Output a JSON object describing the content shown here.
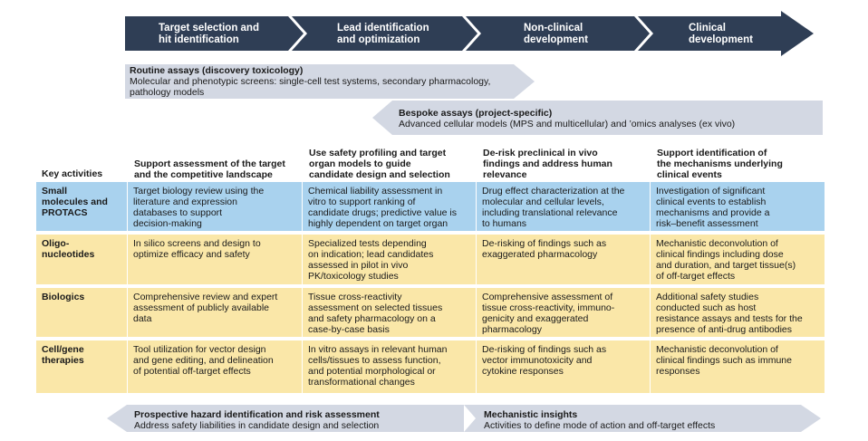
{
  "colors": {
    "phase_arrow": "#2f3e55",
    "band_arrow": "#d3d8e3",
    "row_small": "#a9d2ee",
    "row_other": "#fae7a8"
  },
  "phases": [
    {
      "line1": "Target selection and",
      "line2": "hit identification"
    },
    {
      "line1": "Lead identification",
      "line2": "and optimization"
    },
    {
      "line1": "Non-clinical",
      "line2": "development"
    },
    {
      "line1": "Clinical",
      "line2": "development"
    }
  ],
  "routine": {
    "title": "Routine assays (discovery toxicology)",
    "line1": "Molecular and phenotypic screens: single-cell test systems, secondary pharmacology,",
    "line2": "pathology models"
  },
  "bespoke": {
    "title": "Bespoke assays (project-specific)",
    "line1": "Advanced cellular models (MPS and multicellular) and ’omics analyses (ex vivo)"
  },
  "key_activities_label": "Key activities",
  "headers": [
    [
      "Support assessment of the target",
      "and the competitive landscape"
    ],
    [
      "Use safety profiling and target",
      "organ models to guide",
      "candidate design and selection"
    ],
    [
      "De-risk preclinical in vivo",
      "findings and address human",
      "relevance"
    ],
    [
      "Support identification of",
      "the mechanisms underlying",
      "clinical events"
    ]
  ],
  "rows": [
    {
      "label": [
        "Small",
        "molecules and",
        "PROTACS"
      ],
      "cells": [
        [
          "Target biology review using the",
          "literature and expression",
          "databases to support",
          "decision-making"
        ],
        [
          "Chemical liability assessment in",
          "vitro to support ranking of",
          "candidate drugs; predictive value is",
          "highly dependent on target organ"
        ],
        [
          "Drug effect characterization at the",
          "molecular and cellular levels,",
          "including translational relevance",
          "to humans"
        ],
        [
          "Investigation of significant",
          "clinical events to establish",
          "mechanisms and provide a",
          "risk–benefit assessment"
        ]
      ]
    },
    {
      "label": [
        "Oligo-",
        "nucleotides"
      ],
      "cells": [
        [
          "In silico screens and design to",
          "optimize efficacy and safety"
        ],
        [
          "Specialized tests depending",
          "on indication; lead candidates",
          "assessed in pilot in vivo",
          "PK/toxicology studies"
        ],
        [
          "De-risking of findings such as",
          "exaggerated pharmacology"
        ],
        [
          "Mechanistic deconvolution of",
          "clinical findings including dose",
          "and duration, and target tissue(s)",
          "of off-target effects"
        ]
      ]
    },
    {
      "label": [
        "Biologics"
      ],
      "cells": [
        [
          "Comprehensive review and expert",
          "assessment of publicly available",
          "data"
        ],
        [
          "Tissue cross-reactivity",
          "assessment on selected tissues",
          "and safety pharmacology on a",
          "case-by-case basis"
        ],
        [
          "Comprehensive assessment of",
          "tissue cross-reactivity, immuno-",
          "genicity and exaggerated",
          "pharmacology"
        ],
        [
          "Additional safety studies",
          "conducted such as host",
          "resistance assays and tests for the",
          "presence of anti-drug antibodies"
        ]
      ]
    },
    {
      "label": [
        "Cell/gene",
        "therapies"
      ],
      "cells": [
        [
          "Tool utilization for vector design",
          "and gene editing, and delineation",
          "of potential off-target effects"
        ],
        [
          "In vitro assays in relevant human",
          "cells/tissues to assess function,",
          "and potential morphological or",
          "transformational changes"
        ],
        [
          "De-risking of findings such as",
          "vector immunotoxicity and",
          "cytokine responses"
        ],
        [
          "Mechanistic deconvolution of",
          "clinical findings such as immune",
          "responses"
        ]
      ]
    }
  ],
  "prospective": {
    "title": "Prospective hazard identification and risk assessment",
    "line1": "Address safety liabilities in candidate design and selection"
  },
  "mechanistic": {
    "title": "Mechanistic insights",
    "line1": "Activities to define mode of action and off-target effects"
  }
}
